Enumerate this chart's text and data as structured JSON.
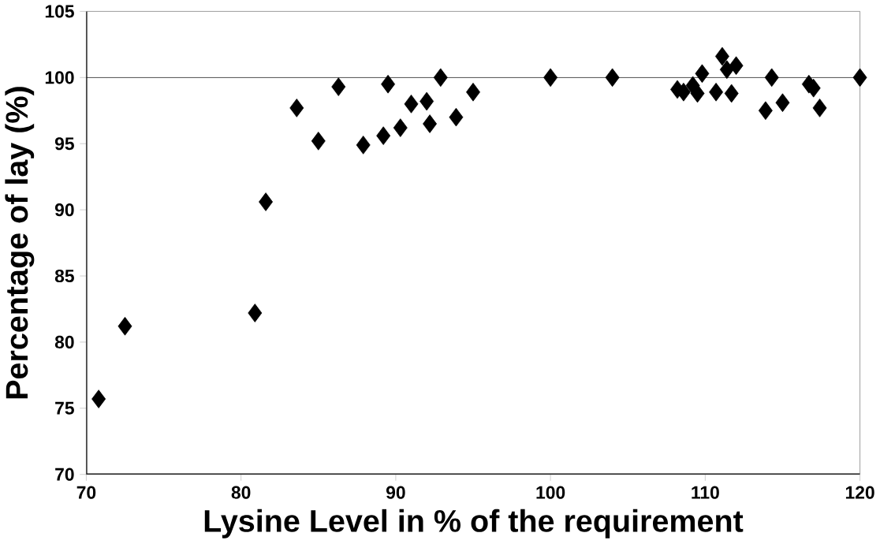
{
  "chart_data": {
    "type": "scatter",
    "xlabel": "Lysine Level in % of the requirement",
    "ylabel": "Percentage of lay (%)",
    "x": [
      70.8,
      72.5,
      80.9,
      81.6,
      83.6,
      85.0,
      86.3,
      87.9,
      89.2,
      89.5,
      90.3,
      91.0,
      92.0,
      92.2,
      92.9,
      93.9,
      95.0,
      100,
      104,
      108.2,
      108.6,
      109.2,
      109.5,
      109.8,
      110.7,
      111.1,
      111.4,
      111.7,
      112.0,
      113.9,
      114.3,
      115.0,
      116.7,
      117.0,
      117.4,
      120
    ],
    "series": [
      {
        "color": "#000000",
        "values": [
          75.7,
          81.2,
          82.2,
          90.6,
          97.7,
          95.2,
          99.3,
          94.9,
          95.6,
          99.5,
          96.2,
          98.0,
          98.2,
          96.5,
          100,
          97.0,
          98.9,
          100,
          100,
          99.1,
          98.9,
          99.4,
          98.8,
          100.3,
          98.9,
          101.6,
          100.6,
          98.8,
          100.9,
          97.5,
          100,
          98.1,
          99.5,
          99.2,
          97.7,
          100
        ]
      }
    ],
    "marker": "diamond",
    "xlim": [
      70,
      120
    ],
    "ylim": [
      70,
      105
    ],
    "xticks": [
      70,
      80,
      90,
      100,
      110,
      120
    ],
    "yticks": [
      70,
      75,
      80,
      85,
      90,
      95,
      100,
      105
    ],
    "ref_lines": [
      {
        "axis": "y",
        "value": 100,
        "color": "#000000"
      }
    ],
    "grid": false
  }
}
